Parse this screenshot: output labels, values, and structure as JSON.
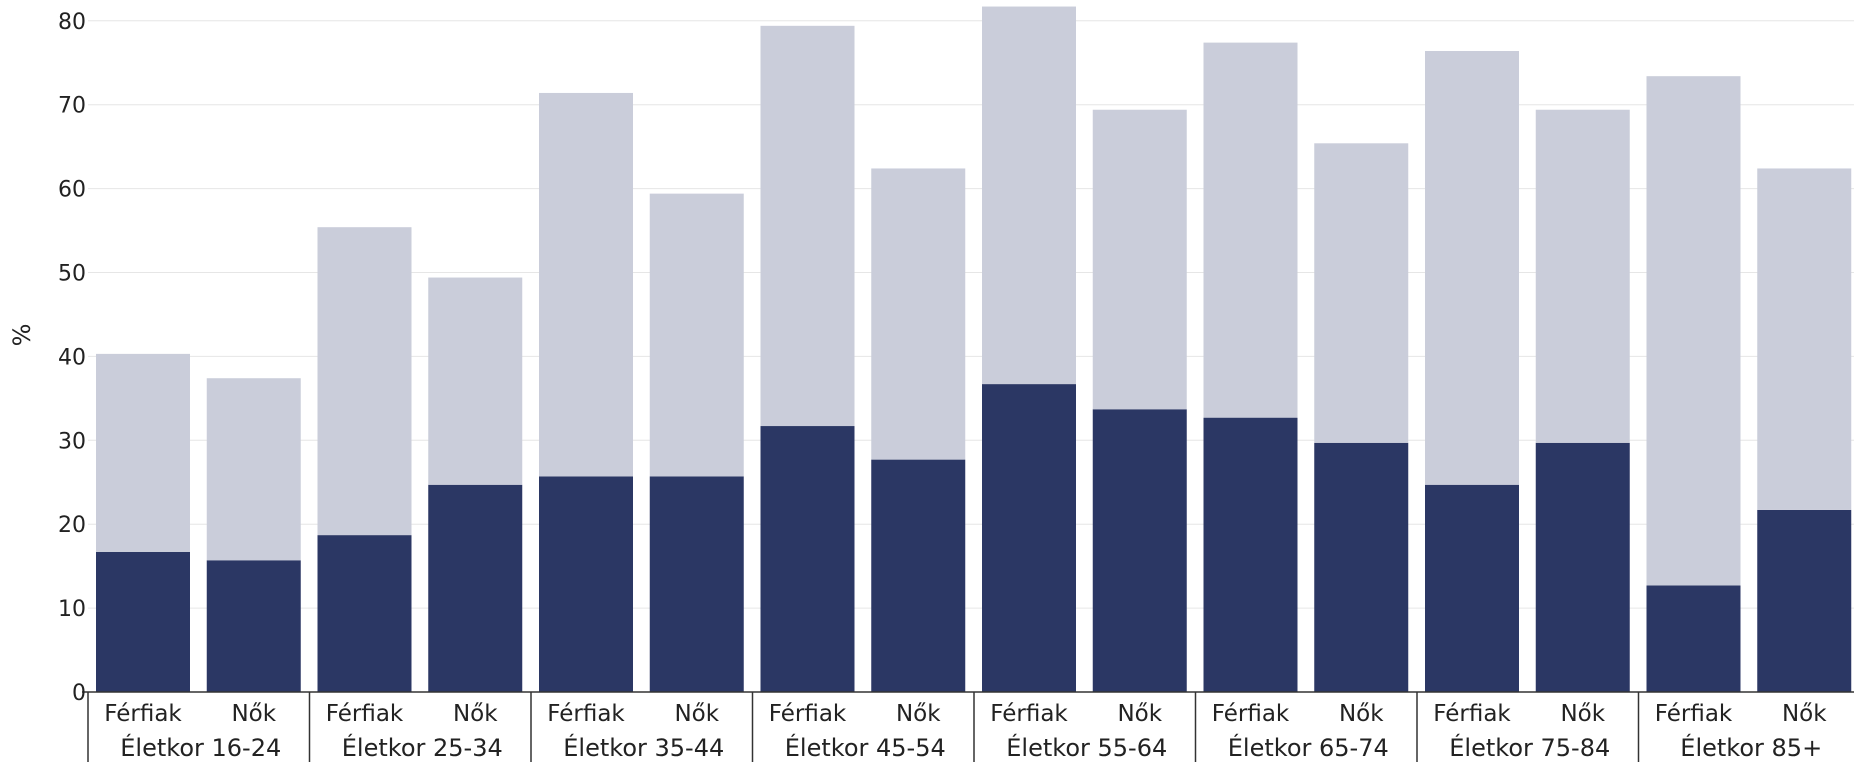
{
  "chart_data": {
    "type": "bar",
    "stacked": true,
    "title": "",
    "xlabel": "",
    "ylabel": "%",
    "ylim": [
      0,
      80
    ],
    "yticks": [
      0,
      10,
      20,
      30,
      40,
      50,
      60,
      70,
      80
    ],
    "grid": true,
    "groups": [
      "Életkor 16-24",
      "Életkor 25-34",
      "Életkor 35-44",
      "Életkor 45-54",
      "Életkor 55-64",
      "Életkor 65-74",
      "Életkor 75-84",
      "Életkor 85+"
    ],
    "sexes": [
      "Férfiak",
      "Nők"
    ],
    "categories": [
      "Életkor 16-24 Férfiak",
      "Életkor 16-24 Nők",
      "Életkor 25-34 Férfiak",
      "Életkor 25-34 Nők",
      "Életkor 35-44 Férfiak",
      "Életkor 35-44 Nők",
      "Életkor 45-54 Férfiak",
      "Életkor 45-54 Nők",
      "Életkor 55-64 Férfiak",
      "Életkor 55-64 Nők",
      "Életkor 65-74 Férfiak",
      "Életkor 65-74 Nők",
      "Életkor 75-84 Férfiak",
      "Életkor 75-84 Nők",
      "Életkor 85+ Férfiak",
      "Életkor 85+ Nők"
    ],
    "series": [
      {
        "color": "#2b3764",
        "values": [
          16.7,
          15.7,
          18.7,
          24.7,
          25.7,
          25.7,
          31.7,
          27.7,
          36.7,
          33.7,
          32.7,
          29.7,
          24.7,
          29.7,
          12.7,
          21.7
        ]
      },
      {
        "color": "#cacdda",
        "values": [
          23.6,
          21.7,
          36.7,
          24.7,
          45.7,
          33.7,
          47.7,
          34.7,
          45.0,
          35.7,
          44.7,
          35.7,
          51.7,
          39.7,
          60.7,
          40.7
        ]
      }
    ]
  }
}
